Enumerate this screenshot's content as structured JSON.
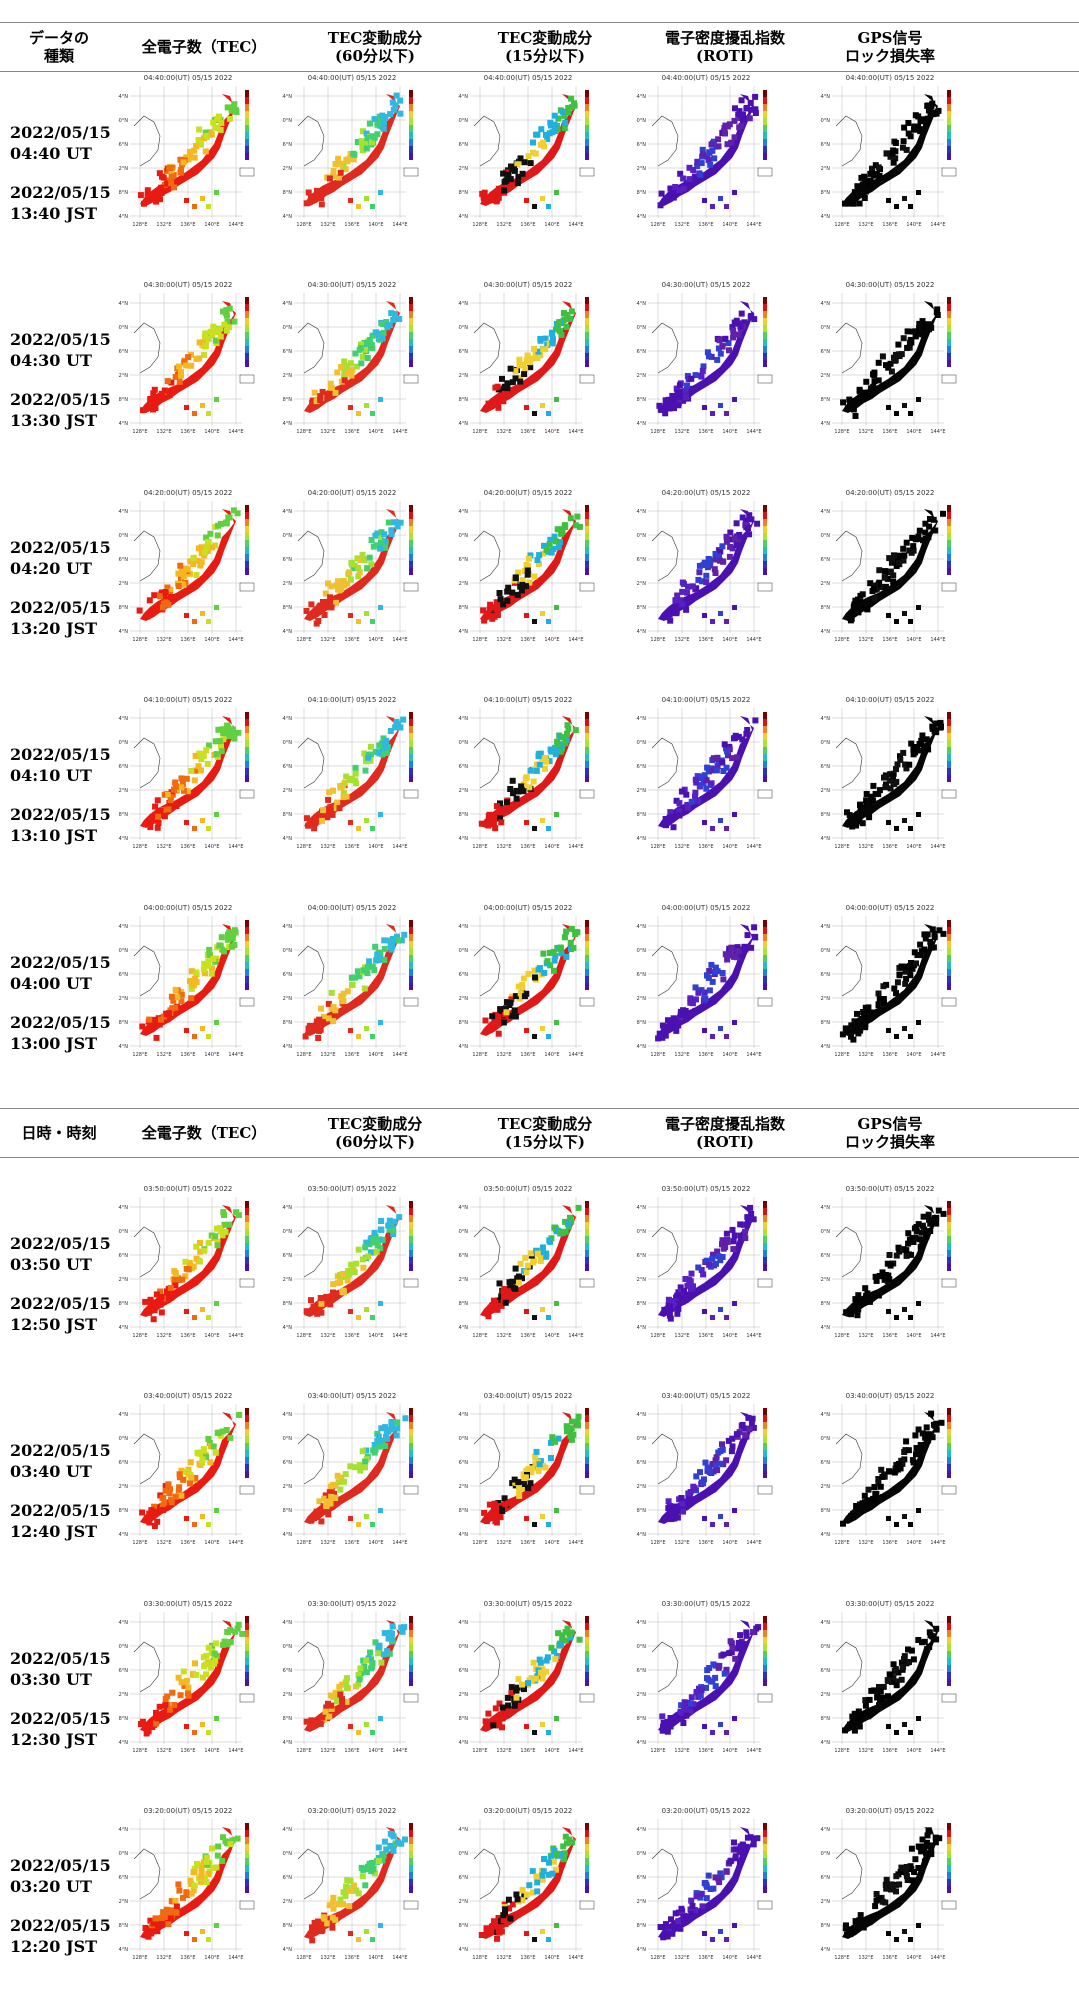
{
  "header_top": {
    "c0": [
      "データの",
      "種類"
    ],
    "c1": [
      "全電子数（TEC）"
    ],
    "c2": [
      "TEC変動成分",
      "(60分以下)"
    ],
    "c3": [
      "TEC変動成分",
      "(15分以下)"
    ],
    "c4": [
      "電子密度擾乱指数",
      "(ROTI)"
    ],
    "c5": [
      "GPS信号",
      "ロック損失率"
    ]
  },
  "header_mid": {
    "c0": [
      "日時・時刻"
    ],
    "c1": [
      "全電子数（TEC）"
    ],
    "c2": [
      "TEC変動成分",
      "(60分以下)"
    ],
    "c3": [
      "TEC変動成分",
      "(15分以下)"
    ],
    "c4": [
      "電子密度擾乱指数",
      "(ROTI)"
    ],
    "c5": [
      "GPS信号",
      "ロック損失率"
    ]
  },
  "map": {
    "lat_labels": [
      "44°N",
      "40°N",
      "36°N",
      "32°N",
      "28°N",
      "24°N"
    ],
    "lon_labels": [
      "128°E",
      "132°E",
      "136°E",
      "140°E",
      "144°E"
    ],
    "date": "05/15 2022"
  },
  "rows": [
    {
      "ut": "2022/05/15\n04:40 UT",
      "jst": "2022/05/15\n13:40 JST",
      "time": "04:40:00"
    },
    {
      "ut": "2022/05/15\n04:30 UT",
      "jst": "2022/05/15\n13:30 JST",
      "time": "04:30:00"
    },
    {
      "ut": "2022/05/15\n04:20 UT",
      "jst": "2022/05/15\n13:20 JST",
      "time": "04:20:00"
    },
    {
      "ut": "2022/05/15\n04:10 UT",
      "jst": "2022/05/15\n13:10 JST",
      "time": "04:10:00"
    },
    {
      "ut": "2022/05/15\n04:00 UT",
      "jst": "2022/05/15\n13:00 JST",
      "time": "04:00:00"
    },
    {
      "ut": "2022/05/15\n03:50 UT",
      "jst": "2022/05/15\n12:50 JST",
      "time": "03:50:00"
    },
    {
      "ut": "2022/05/15\n03:40 UT",
      "jst": "2022/05/15\n12:40 JST",
      "time": "03:40:00"
    },
    {
      "ut": "2022/05/15\n03:30 UT",
      "jst": "2022/05/15\n12:30 JST",
      "time": "03:30:00"
    },
    {
      "ut": "2022/05/15\n03:20 UT",
      "jst": "2022/05/15\n12:20 JST",
      "time": "03:20:00"
    }
  ],
  "panel_colors": {
    "tec": [
      "#e81a12",
      "#f06a10",
      "#f5b820",
      "#c8e020",
      "#60d040"
    ],
    "tec60": [
      "#e02a20",
      "#f0c030",
      "#a8e030",
      "#40d070",
      "#30b8e0"
    ],
    "tec15": [
      "#e01818",
      "#101010",
      "#f0d030",
      "#20b0e0",
      "#40c040"
    ],
    "roti": [
      "#4a10b0",
      "#5820c0",
      "#3040d0",
      "#6020a8",
      "#4a10b0"
    ],
    "lock": [
      "#050505",
      "#000000",
      "#101010",
      "#000000",
      "#050505"
    ]
  }
}
